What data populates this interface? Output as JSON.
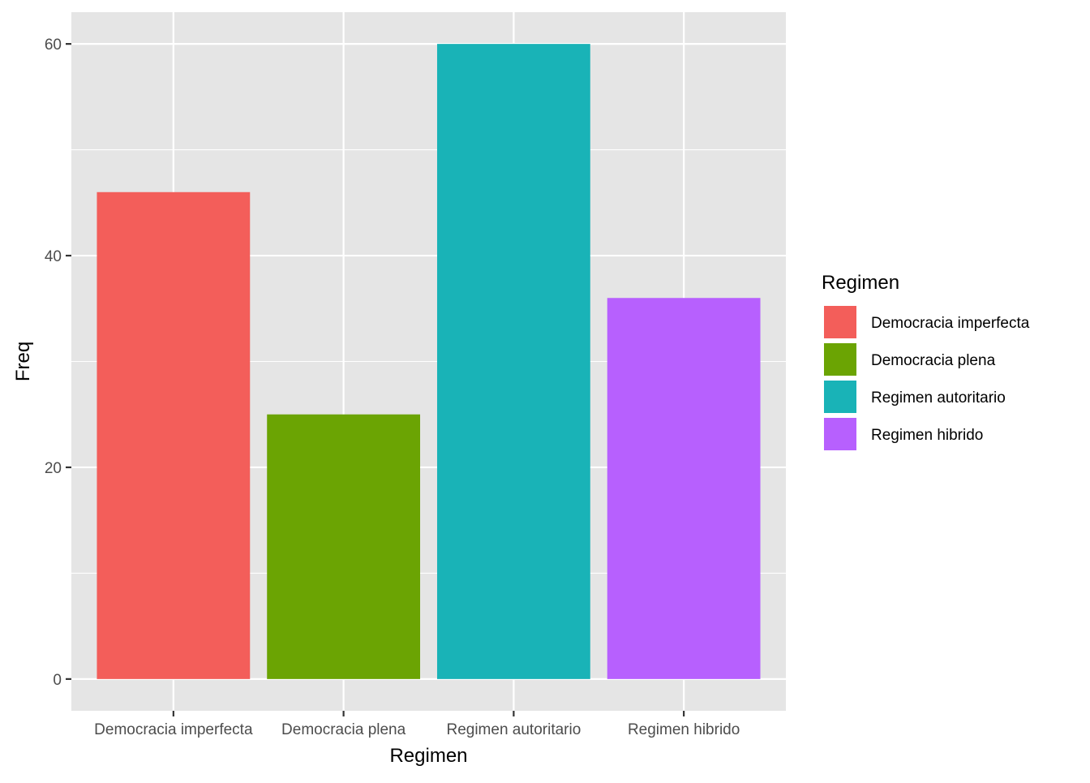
{
  "chart_data": {
    "type": "bar",
    "categories": [
      "Democracia imperfecta",
      "Democracia plena",
      "Regimen autoritario",
      "Regimen hibrido"
    ],
    "values": [
      46,
      25,
      60,
      36
    ],
    "colors": [
      "#F35E5A",
      "#6BA403",
      "#19B3B7",
      "#B760FE"
    ],
    "xlabel": "Regimen",
    "ylabel": "Freq",
    "ylim": [
      -3,
      63
    ],
    "yticks": [
      0,
      20,
      40,
      60
    ],
    "ytick_labels": [
      "0",
      "20",
      "40",
      "60"
    ],
    "grid": true,
    "panel_background": "#E5E5E5",
    "gridline_color": "#FFFFFF",
    "legend": {
      "title": "Regimen",
      "placement": "right",
      "entries": [
        "Democracia imperfecta",
        "Democracia plena",
        "Regimen autoritario",
        "Regimen hibrido"
      ]
    }
  }
}
